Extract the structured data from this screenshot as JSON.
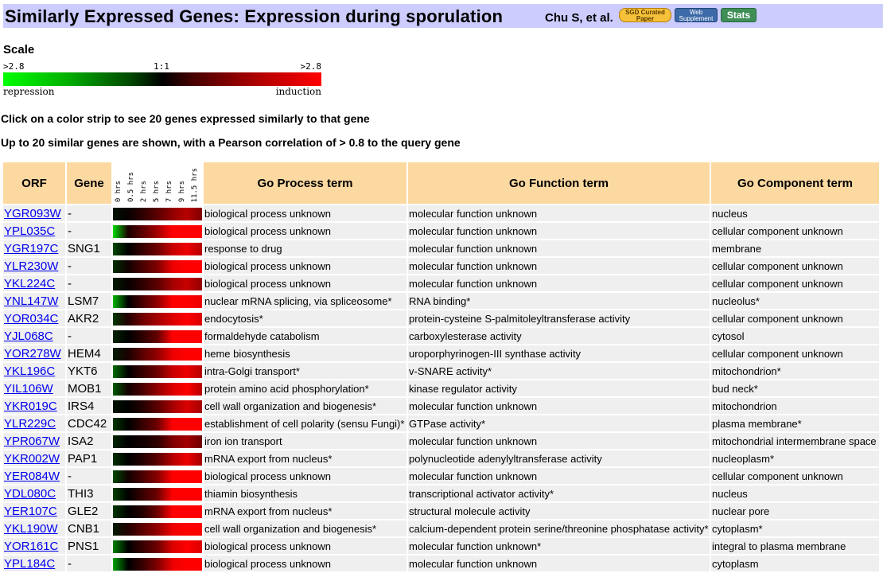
{
  "header": {
    "title": "Similarly Expressed Genes: Expression during sporulation",
    "citation": "Chu S, et al.",
    "badges": {
      "curated": "SGD Curated Paper",
      "web": "Web Supplement",
      "stats": "Stats"
    }
  },
  "scale": {
    "label": "Scale",
    "left_value": ">2.8",
    "center_value": "1:1",
    "right_value": ">2.8",
    "left_label": "repression",
    "right_label": "induction",
    "colors": {
      "repression": "#00ff00",
      "neutral": "#000000",
      "induction": "#ff0000"
    }
  },
  "instructions": {
    "line1": "Click on a color strip to see 20 genes expressed similarly to that gene",
    "line2": "Up to 20 similar genes are shown, with a Pearson correlation of > 0.8 to the query gene"
  },
  "table": {
    "columns": {
      "orf": "ORF",
      "gene": "Gene",
      "process": "Go Process term",
      "function": "Go Function term",
      "component": "Go Component term"
    },
    "timepoints": [
      "0 hrs",
      "0.5 hrs",
      "2 hrs",
      "5 hrs",
      "7 hrs",
      "9 hrs",
      "11.5 hrs"
    ],
    "rows": [
      {
        "orf": "YGR093W",
        "gene": "-",
        "process": "biological process unknown",
        "function": "molecular function unknown",
        "component": "nucleus",
        "levels": [
          -0.2,
          0.1,
          0.5,
          1.0,
          1.6,
          2.0,
          1.4
        ]
      },
      {
        "orf": "YPL035C",
        "gene": "-",
        "process": "biological process unknown",
        "function": "molecular function unknown",
        "component": "cellular component unknown",
        "levels": [
          -2.4,
          0.3,
          1.0,
          1.8,
          2.8,
          2.8,
          2.8
        ]
      },
      {
        "orf": "YGR197C",
        "gene": "SNG1",
        "process": "response to drug",
        "function": "molecular function unknown",
        "component": "membrane",
        "levels": [
          -0.8,
          0.0,
          0.6,
          1.2,
          2.2,
          2.6,
          2.0
        ]
      },
      {
        "orf": "YLR230W",
        "gene": "-",
        "process": "biological process unknown",
        "function": "molecular function unknown",
        "component": "cellular component unknown",
        "levels": [
          -0.5,
          0.2,
          0.8,
          1.4,
          2.6,
          2.8,
          2.8
        ]
      },
      {
        "orf": "YKL224C",
        "gene": "-",
        "process": "biological process unknown",
        "function": "molecular function unknown",
        "component": "cellular component unknown",
        "levels": [
          -0.3,
          0.1,
          0.5,
          1.0,
          1.8,
          2.2,
          1.6
        ]
      },
      {
        "orf": "YNL147W",
        "gene": "LSM7",
        "process": "nuclear mRNA splicing, via spliceosome*",
        "function": "RNA binding*",
        "component": "nucleolus*",
        "levels": [
          -2.0,
          0.0,
          0.8,
          1.6,
          2.8,
          2.8,
          2.6
        ]
      },
      {
        "orf": "YOR034C",
        "gene": "AKR2",
        "process": "endocytosis*",
        "function": "protein-cysteine S-palmitoleyltransferase activity",
        "component": "cellular component unknown",
        "levels": [
          -0.6,
          0.4,
          1.2,
          1.8,
          2.4,
          2.8,
          2.4
        ]
      },
      {
        "orf": "YJL068C",
        "gene": "-",
        "process": "formaldehyde catabolism",
        "function": "carboxylesterase activity",
        "component": "cytosol",
        "levels": [
          -0.4,
          0.0,
          0.5,
          1.1,
          2.8,
          2.8,
          2.8
        ]
      },
      {
        "orf": "YOR278W",
        "gene": "HEM4",
        "process": "heme biosynthesis",
        "function": "uroporphyrinogen-III synthase activity",
        "component": "cellular component unknown",
        "levels": [
          -0.3,
          0.3,
          1.0,
          1.6,
          2.6,
          2.8,
          2.8
        ]
      },
      {
        "orf": "YKL196C",
        "gene": "YKT6",
        "process": "intra-Golgi transport*",
        "function": "v-SNARE activity*",
        "component": "mitochondrion*",
        "levels": [
          -1.2,
          0.0,
          0.6,
          1.2,
          2.2,
          2.6,
          2.0
        ]
      },
      {
        "orf": "YIL106W",
        "gene": "MOB1",
        "process": "protein amino acid phosphorylation*",
        "function": "kinase regulator activity",
        "component": "bud neck*",
        "levels": [
          -1.0,
          0.2,
          0.8,
          1.6,
          2.4,
          2.8,
          2.0
        ]
      },
      {
        "orf": "YKR019C",
        "gene": "IRS4",
        "process": "cell wall organization and biogenesis*",
        "function": "molecular function unknown",
        "component": "mitochondrion",
        "levels": [
          -0.2,
          0.0,
          0.4,
          1.0,
          1.8,
          2.4,
          1.8
        ]
      },
      {
        "orf": "YLR229C",
        "gene": "CDC42",
        "process": "establishment of cell polarity (sensu Fungi)*",
        "function": "GTPase activity*",
        "component": "plasma membrane*",
        "levels": [
          -0.6,
          0.0,
          0.6,
          1.2,
          2.8,
          2.8,
          2.8
        ]
      },
      {
        "orf": "YPR067W",
        "gene": "ISA2",
        "process": "iron ion transport",
        "function": "molecular function unknown",
        "component": "mitochondrial intermembrane space",
        "levels": [
          -0.4,
          0.0,
          0.2,
          0.5,
          1.4,
          1.8,
          1.2
        ]
      },
      {
        "orf": "YKR002W",
        "gene": "PAP1",
        "process": "mRNA export from nucleus*",
        "function": "polynucleotide adenylyltransferase activity",
        "component": "nucleoplasm*",
        "levels": [
          -0.5,
          0.0,
          0.4,
          1.0,
          2.0,
          2.6,
          1.8
        ]
      },
      {
        "orf": "YER084W",
        "gene": "-",
        "process": "biological process unknown",
        "function": "molecular function unknown",
        "component": "cellular component unknown",
        "levels": [
          -0.8,
          0.2,
          0.8,
          1.5,
          2.8,
          2.8,
          2.8
        ]
      },
      {
        "orf": "YDL080C",
        "gene": "THI3",
        "process": "thiamin biosynthesis",
        "function": "transcriptional activator activity*",
        "component": "nucleus",
        "levels": [
          -0.7,
          0.0,
          0.6,
          1.2,
          2.8,
          2.8,
          2.8
        ]
      },
      {
        "orf": "YER107C",
        "gene": "GLE2",
        "process": "mRNA export from nucleus*",
        "function": "structural molecule activity",
        "component": "nuclear pore",
        "levels": [
          -0.6,
          0.0,
          0.4,
          1.2,
          2.8,
          2.8,
          2.8
        ]
      },
      {
        "orf": "YKL190W",
        "gene": "CNB1",
        "process": "cell wall organization and biogenesis*",
        "function": "calcium-dependent protein serine/threonine phosphatase activity*",
        "component": "cytoplasm*",
        "levels": [
          -0.3,
          0.4,
          1.0,
          1.6,
          2.6,
          2.8,
          2.8
        ]
      },
      {
        "orf": "YOR161C",
        "gene": "PNS1",
        "process": "biological process unknown",
        "function": "molecular function unknown*",
        "component": "integral to plasma membrane",
        "levels": [
          -1.4,
          0.0,
          0.6,
          1.2,
          2.4,
          2.8,
          2.4
        ]
      },
      {
        "orf": "YPL184C",
        "gene": "-",
        "process": "biological process unknown",
        "function": "molecular function unknown",
        "component": "cytoplasm",
        "levels": [
          -1.8,
          0.0,
          0.6,
          1.4,
          2.6,
          2.8,
          2.8
        ]
      }
    ]
  }
}
